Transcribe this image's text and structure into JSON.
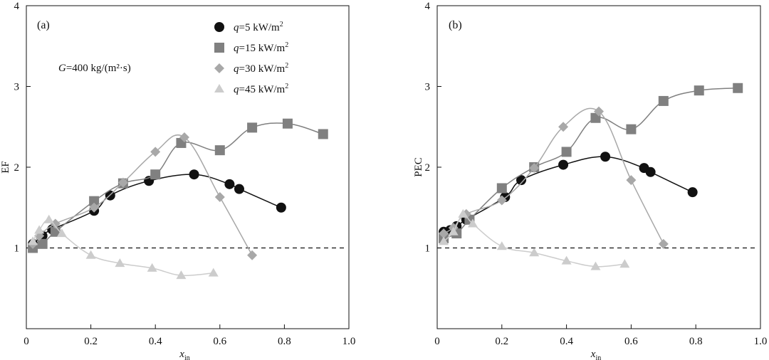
{
  "chart_data": [
    {
      "type": "line",
      "panel_label": "(a)",
      "xlabel": "x",
      "xlabel_sub": "in",
      "ylabel": "EF",
      "xlim": [
        0,
        1.0
      ],
      "ylim": [
        0,
        4
      ],
      "xticks": [
        "0",
        "0.2",
        "0.4",
        "0.6",
        "0.8",
        "1.0"
      ],
      "yticks": [
        "1",
        "2",
        "3",
        "4"
      ],
      "reference_line": 1,
      "annotation": {
        "var": "G",
        "text": "=400 kg/(m²·s)"
      },
      "series": [
        {
          "name": "q=5 kW/m2",
          "marker": "circle",
          "color": "#111111",
          "x": [
            0.02,
            0.05,
            0.08,
            0.21,
            0.26,
            0.38,
            0.52,
            0.63,
            0.66,
            0.79
          ],
          "y": [
            1.05,
            1.15,
            1.23,
            1.46,
            1.65,
            1.83,
            1.91,
            1.79,
            1.73,
            1.5
          ]
        },
        {
          "name": "q=15 kW/m2",
          "marker": "square",
          "color": "#808080",
          "x": [
            0.02,
            0.05,
            0.09,
            0.21,
            0.3,
            0.4,
            0.48,
            0.6,
            0.7,
            0.81,
            0.92
          ],
          "y": [
            1.0,
            1.05,
            1.2,
            1.58,
            1.8,
            1.91,
            2.3,
            2.21,
            2.49,
            2.54,
            2.41
          ]
        },
        {
          "name": "q=30 kW/m2",
          "marker": "diamond",
          "color": "#a8a8a8",
          "x": [
            0.02,
            0.04,
            0.09,
            0.21,
            0.3,
            0.4,
            0.49,
            0.6,
            0.7
          ],
          "y": [
            1.05,
            1.15,
            1.3,
            1.5,
            1.81,
            2.19,
            2.37,
            1.63,
            0.91
          ]
        },
        {
          "name": "q=45 kW/m2",
          "marker": "triangle",
          "color": "#cccccc",
          "x": [
            0.02,
            0.04,
            0.07,
            0.11,
            0.2,
            0.29,
            0.39,
            0.48,
            0.58
          ],
          "y": [
            1.08,
            1.22,
            1.35,
            1.18,
            0.91,
            0.81,
            0.75,
            0.66,
            0.69
          ]
        }
      ]
    },
    {
      "type": "line",
      "panel_label": "(b)",
      "xlabel": "x",
      "xlabel_sub": "in",
      "ylabel": "PEC",
      "xlim": [
        0,
        1.0
      ],
      "ylim": [
        0,
        4
      ],
      "xticks": [
        "0",
        "0.2",
        "0.4",
        "0.6",
        "0.8",
        "1.0"
      ],
      "yticks": [
        "1",
        "2",
        "3",
        "4"
      ],
      "reference_line": 1,
      "series": [
        {
          "name": "q=5 kW/m2",
          "marker": "circle",
          "color": "#111111",
          "x": [
            0.02,
            0.04,
            0.06,
            0.09,
            0.21,
            0.26,
            0.39,
            0.52,
            0.64,
            0.66,
            0.79
          ],
          "y": [
            1.2,
            1.22,
            1.27,
            1.35,
            1.63,
            1.84,
            2.03,
            2.13,
            1.99,
            1.94,
            1.69
          ]
        },
        {
          "name": "q=15 kW/m2",
          "marker": "square",
          "color": "#808080",
          "x": [
            0.02,
            0.06,
            0.1,
            0.2,
            0.3,
            0.4,
            0.49,
            0.6,
            0.7,
            0.81,
            0.93
          ],
          "y": [
            1.12,
            1.18,
            1.35,
            1.74,
            2.0,
            2.19,
            2.61,
            2.47,
            2.82,
            2.95,
            2.98
          ]
        },
        {
          "name": "q=30 kW/m2",
          "marker": "diamond",
          "color": "#a8a8a8",
          "x": [
            0.02,
            0.05,
            0.09,
            0.2,
            0.3,
            0.39,
            0.5,
            0.6,
            0.7
          ],
          "y": [
            1.18,
            1.25,
            1.42,
            1.59,
            1.99,
            2.5,
            2.69,
            1.84,
            1.05
          ]
        },
        {
          "name": "q=45 kW/m2",
          "marker": "triangle",
          "color": "#cccccc",
          "x": [
            0.02,
            0.05,
            0.08,
            0.11,
            0.2,
            0.3,
            0.4,
            0.49,
            0.58
          ],
          "y": [
            1.08,
            1.2,
            1.42,
            1.3,
            1.02,
            0.94,
            0.84,
            0.77,
            0.8
          ]
        }
      ]
    }
  ],
  "legend": [
    {
      "var": "q",
      "text": "=5 kW/m",
      "sup": "2"
    },
    {
      "var": "q",
      "text": "=15 kW/m",
      "sup": "2"
    },
    {
      "var": "q",
      "text": "=30 kW/m",
      "sup": "2"
    },
    {
      "var": "q",
      "text": "=45 kW/m",
      "sup": "2"
    }
  ]
}
